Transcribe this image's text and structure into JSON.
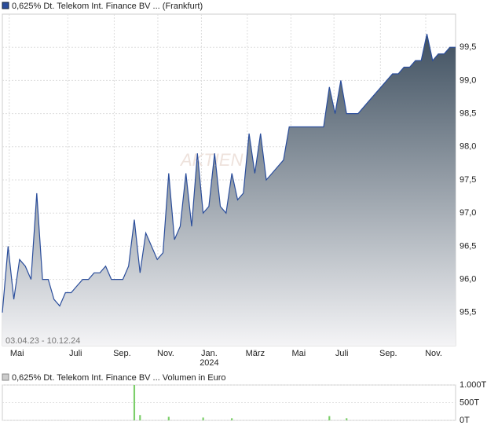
{
  "chart_data": [
    {
      "type": "area",
      "legend_title": "0,625% Dt. Telekom Int. Finance BV ... (Frankfurt)",
      "date_range": "03.04.23 - 10.12.24",
      "watermark": "AKTIEN",
      "year_marker": "2024",
      "series": [
        {
          "name": "0,625% Dt. Telekom Int. Finance BV ... (Frankfurt)",
          "color": "#2a4d9b",
          "values": [
            95.5,
            96.5,
            95.7,
            96.3,
            96.2,
            96.0,
            97.3,
            96.0,
            96.0,
            95.7,
            95.6,
            95.8,
            95.8,
            95.9,
            96.0,
            96.0,
            96.1,
            96.1,
            96.2,
            96.0,
            96.0,
            96.0,
            96.2,
            96.9,
            96.1,
            96.7,
            96.5,
            96.3,
            96.4,
            97.6,
            96.6,
            96.8,
            97.6,
            96.8,
            97.9,
            97.0,
            97.1,
            97.9,
            97.1,
            97.0,
            97.6,
            97.2,
            97.3,
            98.2,
            97.6,
            98.2,
            97.5,
            97.6,
            97.7,
            97.8,
            98.3,
            98.3,
            98.3,
            98.3,
            98.3,
            98.3,
            98.3,
            98.9,
            98.5,
            99.0,
            98.5,
            98.5,
            98.5,
            98.6,
            98.7,
            98.8,
            98.9,
            99.0,
            99.1,
            99.1,
            99.2,
            99.2,
            99.3,
            99.3,
            99.7,
            99.3,
            99.4,
            99.4,
            99.5,
            99.5
          ]
        }
      ],
      "xlim": [
        0,
        79
      ],
      "xticks": [
        {
          "value": 1.2,
          "label": "Mai"
        },
        {
          "value": 11.4,
          "label": "Juli"
        },
        {
          "value": 19.5,
          "label": "Sep."
        },
        {
          "value": 27.1,
          "label": "Nov."
        },
        {
          "value": 34.7,
          "label": "Jan."
        },
        {
          "value": 42.7,
          "label": "März"
        },
        {
          "value": 50.3,
          "label": "Mai"
        },
        {
          "value": 57.8,
          "label": "Juli"
        },
        {
          "value": 65.9,
          "label": "Sep."
        },
        {
          "value": 73.8,
          "label": "Nov."
        }
      ],
      "ylim": [
        95.0,
        100.0
      ],
      "yticks": [
        {
          "value": 95.5,
          "label": "95,5"
        },
        {
          "value": 96.0,
          "label": "96,0"
        },
        {
          "value": 96.5,
          "label": "96,5"
        },
        {
          "value": 97.0,
          "label": "97,0"
        },
        {
          "value": 97.5,
          "label": "97,5"
        },
        {
          "value": 98.0,
          "label": "98,0"
        },
        {
          "value": 98.5,
          "label": "98,5"
        },
        {
          "value": 99.0,
          "label": "99,0"
        },
        {
          "value": 99.5,
          "label": "99,5"
        }
      ],
      "grid": true
    },
    {
      "type": "bar",
      "legend_title": "0,625% Dt. Telekom Int. Finance BV ... Volumen in Euro",
      "series": [
        {
          "name": "0,625% Dt. Telekom Int. Finance BV ... Volumen in Euro",
          "color": "#7ccf6a",
          "values": [
            0,
            0,
            0,
            0,
            0,
            0,
            0,
            0,
            0,
            0,
            0,
            0,
            0,
            0,
            0,
            0,
            0,
            0,
            0,
            0,
            0,
            0,
            0,
            1000,
            150,
            0,
            0,
            0,
            0,
            100,
            0,
            0,
            0,
            0,
            0,
            80,
            0,
            0,
            0,
            0,
            60,
            0,
            0,
            0,
            0,
            0,
            0,
            0,
            0,
            0,
            0,
            0,
            0,
            0,
            0,
            0,
            0,
            120,
            0,
            0,
            60,
            0,
            0,
            0,
            0,
            0,
            0,
            0,
            0,
            0,
            0,
            0,
            0,
            0,
            0,
            0,
            0,
            0,
            0,
            0
          ]
        }
      ],
      "xlim": [
        0,
        79
      ],
      "ylim": [
        0,
        1000
      ],
      "yticks": [
        {
          "value": 0,
          "label": "0T"
        },
        {
          "value": 500,
          "label": "500T"
        },
        {
          "value": 1000,
          "label": "1.000T"
        }
      ],
      "grid": true
    }
  ]
}
